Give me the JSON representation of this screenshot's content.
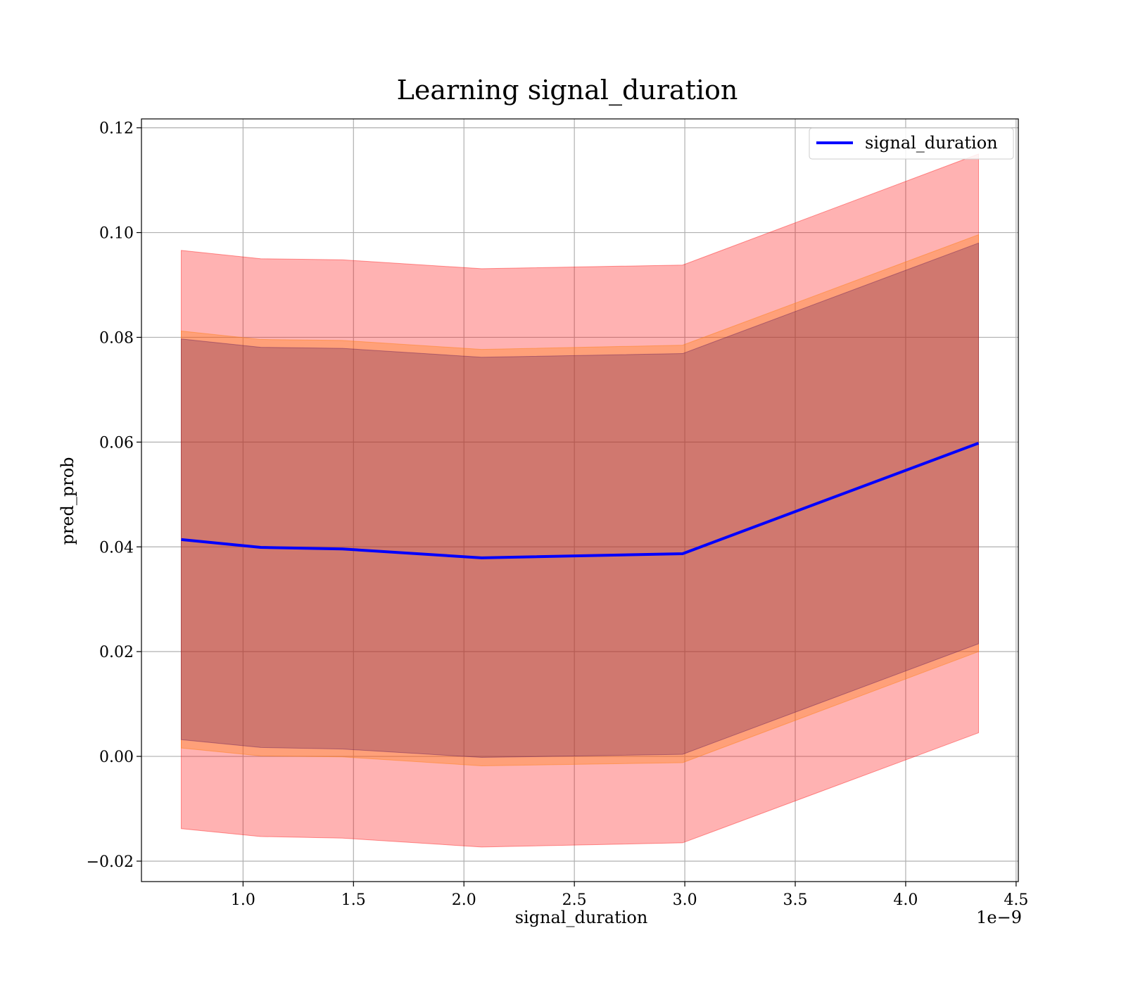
{
  "chart_data": {
    "type": "line",
    "title": "Learning signal_duration",
    "xlabel": "signal_duration",
    "ylabel": "pred_prob",
    "x_offset_text": "1e−9",
    "xlim": [
      0.54,
      4.51
    ],
    "ylim": [
      -0.0239,
      0.1217
    ],
    "xticks": [
      1.0,
      1.5,
      2.0,
      2.5,
      3.0,
      3.5,
      4.0,
      4.5
    ],
    "xtick_labels": [
      "1.0",
      "1.5",
      "2.0",
      "2.5",
      "3.0",
      "3.5",
      "4.0",
      "4.5"
    ],
    "yticks": [
      -0.02,
      0.0,
      0.02,
      0.04,
      0.06,
      0.08,
      0.1,
      0.12
    ],
    "ytick_labels": [
      "−0.02",
      "0.00",
      "0.02",
      "0.04",
      "0.06",
      "0.08",
      "0.10",
      "0.12"
    ],
    "grid": true,
    "legend_position": "top-right",
    "x": [
      0.72,
      1.08,
      1.45,
      2.08,
      2.99,
      4.33
    ],
    "series": [
      {
        "name": "signal_duration",
        "color": "#0000ff",
        "values": [
          0.0414,
          0.0399,
          0.0396,
          0.0379,
          0.0387,
          0.0598
        ]
      }
    ],
    "bands": [
      {
        "color": "#ff0000",
        "opacity": 0.3,
        "upper": [
          0.0966,
          0.095,
          0.0948,
          0.0931,
          0.0938,
          0.115
        ],
        "lower": [
          -0.0138,
          -0.0153,
          -0.0156,
          -0.0173,
          -0.0165,
          0.0045
        ]
      },
      {
        "color": "#ff7f0e",
        "opacity": 0.35,
        "upper": [
          0.0812,
          0.0796,
          0.0794,
          0.0777,
          0.0785,
          0.0996
        ],
        "lower": [
          0.0016,
          0.0001,
          -0.0001,
          -0.0018,
          -0.0012,
          0.02
        ]
      },
      {
        "color": "#440154",
        "opacity": 0.25,
        "upper": [
          0.0797,
          0.0781,
          0.0779,
          0.0762,
          0.0769,
          0.098
        ],
        "lower": [
          0.0032,
          0.0017,
          0.0014,
          -0.0002,
          0.0004,
          0.0215
        ]
      }
    ]
  }
}
